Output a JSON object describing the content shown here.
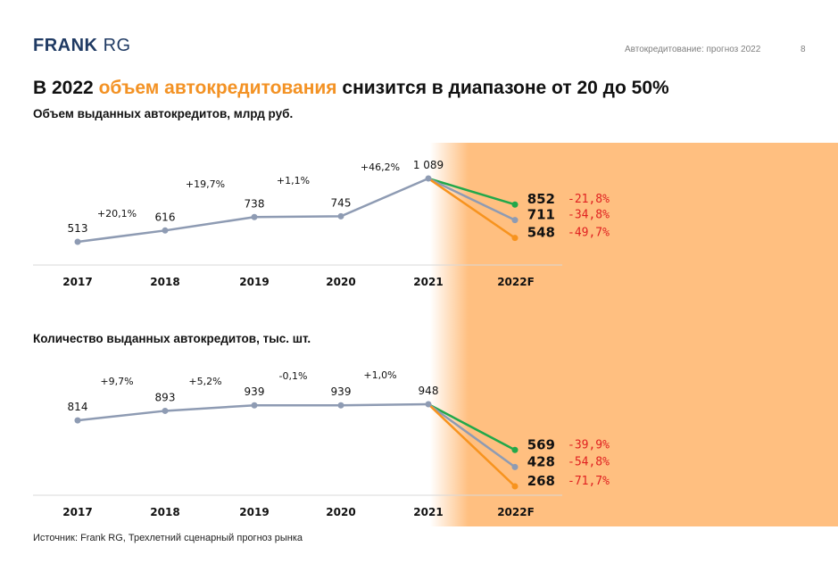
{
  "header": {
    "logo_main": "FRANK",
    "logo_suffix": "RG",
    "section": "Автокредитование: прогноз 2022",
    "page": "8"
  },
  "title": {
    "part1": "В 2022 ",
    "highlight": "объем автокредитования",
    "part2": " снизится в диапазоне от 20 до 50%"
  },
  "source": "Источник: Frank RG, Трехлетний сценарный прогноз рынка",
  "colors": {
    "accent": "#f39224",
    "history_line": "#8e9bb3",
    "optimistic": "#22a84a",
    "base": "#8e9bb3",
    "pessimistic": "#f7931e",
    "forecast_bg": "#ffbf80",
    "negative": "#e02020"
  },
  "chart_data": [
    {
      "type": "line",
      "title": "Объем выданных автокредитов, млрд руб.",
      "categories": [
        "2017",
        "2018",
        "2019",
        "2020",
        "2021",
        "2022F"
      ],
      "history": {
        "years": [
          "2017",
          "2018",
          "2019",
          "2020",
          "2021"
        ],
        "values": [
          513,
          616,
          738,
          745,
          1089
        ],
        "labels": [
          "513",
          "616",
          "738",
          "745",
          "1 089"
        ],
        "changes": [
          "+20,1%",
          "+19,7%",
          "+1,1%",
          "+46,2%"
        ]
      },
      "forecast": [
        {
          "scenario": "optimistic",
          "value": 852,
          "label": "852",
          "change": "-21,8%"
        },
        {
          "scenario": "base",
          "value": 711,
          "label": "711",
          "change": "-34,8%"
        },
        {
          "scenario": "pessimistic",
          "value": 548,
          "label": "548",
          "change": "-49,7%"
        }
      ]
    },
    {
      "type": "line",
      "title": "Количество выданных автокредитов, тыс. шт.",
      "categories": [
        "2017",
        "2018",
        "2019",
        "2020",
        "2021",
        "2022F"
      ],
      "history": {
        "years": [
          "2017",
          "2018",
          "2019",
          "2020",
          "2021"
        ],
        "values": [
          814,
          893,
          939,
          939,
          948
        ],
        "labels": [
          "814",
          "893",
          "939",
          "939",
          "948"
        ],
        "changes": [
          "+9,7%",
          "+5,2%",
          "-0,1%",
          "+1,0%"
        ]
      },
      "forecast": [
        {
          "scenario": "optimistic",
          "value": 569,
          "label": "569",
          "change": "-39,9%"
        },
        {
          "scenario": "base",
          "value": 428,
          "label": "428",
          "change": "-54,8%"
        },
        {
          "scenario": "pessimistic",
          "value": 268,
          "label": "268",
          "change": "-71,7%"
        }
      ]
    }
  ]
}
